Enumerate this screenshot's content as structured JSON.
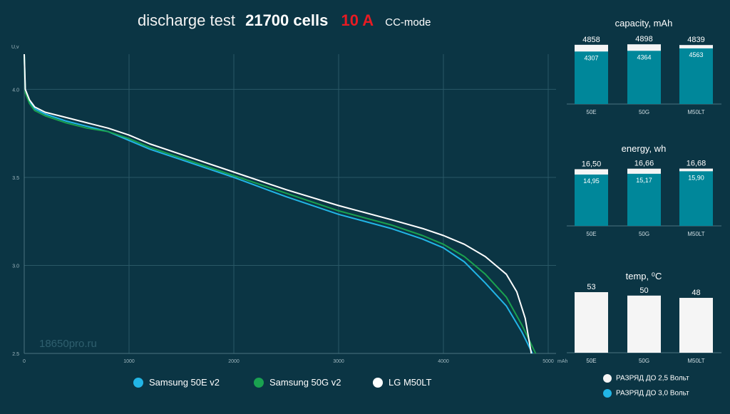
{
  "title": {
    "part1": "discharge test",
    "part2": "21700 cells",
    "current": "10 A",
    "mode": "CC-mode"
  },
  "watermark": "18650pro.ru",
  "colors": {
    "background": "#0b3544",
    "samsung_50e": "#22b5e6",
    "samsung_50g": "#1aa250",
    "lg_m50lt": "#ffffff",
    "bar_total": "#f5f5f5",
    "bar_partial": "#00879a",
    "title_accent": "#e81b23"
  },
  "legend": [
    {
      "label": "Samsung 50E v2",
      "color": "#22b5e6"
    },
    {
      "label": "Samsung 50G v2",
      "color": "#1aa250"
    },
    {
      "label": "LG M50LT",
      "color": "#ffffff"
    }
  ],
  "bar_key": [
    {
      "label": "РАЗРЯД ДО 2,5 Вольт",
      "color": "#f5f5f5"
    },
    {
      "label": "РАЗРЯД ДО 3,0 Вольт",
      "color": "#22b5e6"
    }
  ],
  "chart_data": [
    {
      "type": "line",
      "xlabel": "mAh",
      "ylabel": "U,v",
      "xlim": [
        0,
        5000
      ],
      "ylim": [
        2.5,
        4.2
      ],
      "xticks": [
        "0",
        "1000",
        "2000",
        "3000",
        "4000",
        "5000"
      ],
      "yticks": [
        "2.5",
        "3.0",
        "3.5",
        "4.0"
      ],
      "grid": true,
      "series": [
        {
          "name": "Samsung 50E v2",
          "color": "#22b5e6",
          "points": [
            [
              0,
              4.2
            ],
            [
              10,
              3.99
            ],
            [
              50,
              3.93
            ],
            [
              100,
              3.89
            ],
            [
              200,
              3.86
            ],
            [
              400,
              3.82
            ],
            [
              600,
              3.79
            ],
            [
              800,
              3.76
            ],
            [
              1000,
              3.71
            ],
            [
              1200,
              3.66
            ],
            [
              1500,
              3.6
            ],
            [
              2000,
              3.5
            ],
            [
              2500,
              3.39
            ],
            [
              3000,
              3.29
            ],
            [
              3500,
              3.21
            ],
            [
              3800,
              3.15
            ],
            [
              4000,
              3.1
            ],
            [
              4200,
              3.02
            ],
            [
              4400,
              2.9
            ],
            [
              4600,
              2.77
            ],
            [
              4750,
              2.62
            ],
            [
              4850,
              2.5
            ]
          ]
        },
        {
          "name": "Samsung 50G v2",
          "color": "#1aa250",
          "points": [
            [
              0,
              4.2
            ],
            [
              10,
              3.98
            ],
            [
              50,
              3.92
            ],
            [
              100,
              3.88
            ],
            [
              200,
              3.85
            ],
            [
              400,
              3.81
            ],
            [
              600,
              3.78
            ],
            [
              800,
              3.76
            ],
            [
              1000,
              3.72
            ],
            [
              1200,
              3.67
            ],
            [
              1500,
              3.61
            ],
            [
              2000,
              3.51
            ],
            [
              2500,
              3.41
            ],
            [
              3000,
              3.31
            ],
            [
              3500,
              3.23
            ],
            [
              3800,
              3.17
            ],
            [
              4000,
              3.12
            ],
            [
              4200,
              3.05
            ],
            [
              4400,
              2.95
            ],
            [
              4600,
              2.82
            ],
            [
              4750,
              2.66
            ],
            [
              4880,
              2.5
            ]
          ]
        },
        {
          "name": "LG M50LT",
          "color": "#ffffff",
          "points": [
            [
              0,
              4.2
            ],
            [
              10,
              4.0
            ],
            [
              50,
              3.94
            ],
            [
              100,
              3.9
            ],
            [
              200,
              3.87
            ],
            [
              400,
              3.84
            ],
            [
              600,
              3.81
            ],
            [
              800,
              3.78
            ],
            [
              1000,
              3.74
            ],
            [
              1200,
              3.69
            ],
            [
              1500,
              3.63
            ],
            [
              2000,
              3.53
            ],
            [
              2500,
              3.43
            ],
            [
              3000,
              3.34
            ],
            [
              3500,
              3.26
            ],
            [
              3800,
              3.21
            ],
            [
              4000,
              3.17
            ],
            [
              4200,
              3.12
            ],
            [
              4400,
              3.05
            ],
            [
              4600,
              2.95
            ],
            [
              4700,
              2.85
            ],
            [
              4780,
              2.7
            ],
            [
              4839,
              2.5
            ]
          ]
        }
      ]
    },
    {
      "type": "bar",
      "title": "capacity, mAh",
      "categories": [
        "50E",
        "50G",
        "M50LT"
      ],
      "ylim": [
        0,
        5200
      ],
      "series": [
        {
          "name": "РАЗРЯД ДО 2,5 Вольт",
          "values": [
            4858,
            4898,
            4839
          ],
          "labels": [
            "4858",
            "4898",
            "4839"
          ]
        },
        {
          "name": "РАЗРЯД ДО 3,0 Вольт",
          "values": [
            4307,
            4364,
            4563
          ],
          "labels": [
            "4307",
            "4364",
            "4563"
          ]
        }
      ]
    },
    {
      "type": "bar",
      "title": "energy, wh",
      "categories": [
        "50E",
        "50G",
        "M50LT"
      ],
      "ylim": [
        0,
        17.84
      ],
      "series": [
        {
          "name": "РАЗРЯД ДО 2,5 Вольт",
          "values": [
            16.5,
            16.66,
            16.68
          ],
          "labels": [
            "16,50",
            "16,66",
            "16,68"
          ]
        },
        {
          "name": "РАЗРЯД ДО 3,0 Вольт",
          "values": [
            14.95,
            15.17,
            15.9
          ],
          "labels": [
            "14,95",
            "15,17",
            "15,90"
          ]
        }
      ]
    },
    {
      "type": "bar",
      "title": "temp, ⁰C",
      "categories": [
        "50E",
        "50G",
        "M50LT"
      ],
      "ylim": [
        0,
        53
      ],
      "series": [
        {
          "name": "temp",
          "values": [
            53,
            50,
            48
          ],
          "labels": [
            "53",
            "50",
            "48"
          ]
        }
      ]
    }
  ]
}
